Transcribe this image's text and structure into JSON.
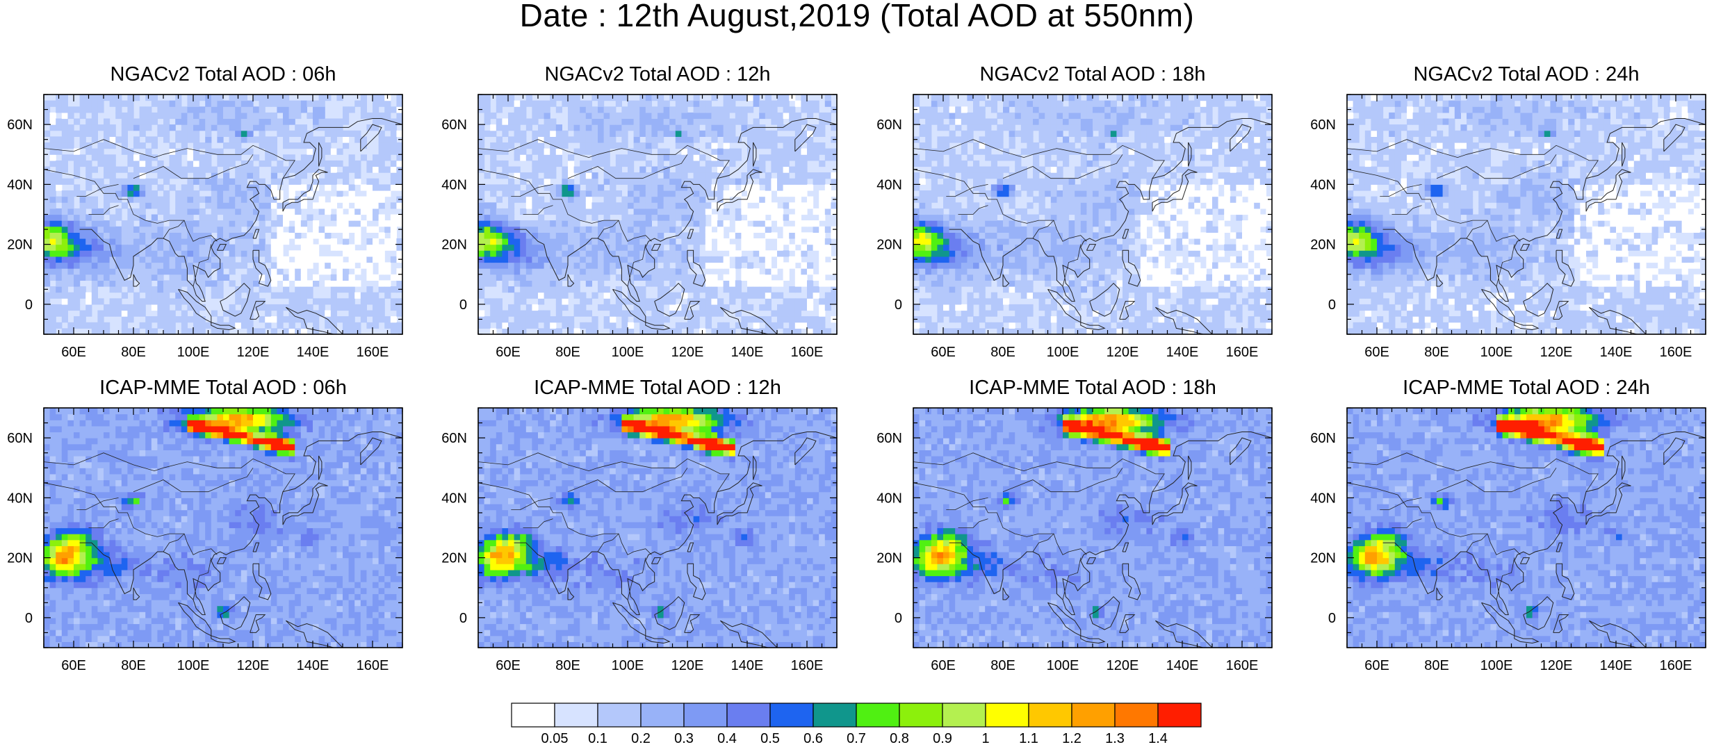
{
  "title": "Date : 12th August,2019 (Total AOD at 550nm)",
  "panels": [
    {
      "title": "NGACv2 Total AOD : 06h",
      "model": "NGACv2",
      "hour": "06h"
    },
    {
      "title": "NGACv2 Total AOD : 12h",
      "model": "NGACv2",
      "hour": "12h"
    },
    {
      "title": "NGACv2 Total AOD : 18h",
      "model": "NGACv2",
      "hour": "18h"
    },
    {
      "title": "NGACv2 Total AOD : 24h",
      "model": "NGACv2",
      "hour": "24h"
    },
    {
      "title": "ICAP-MME Total AOD : 06h",
      "model": "ICAP-MME",
      "hour": "06h"
    },
    {
      "title": "ICAP-MME Total AOD : 12h",
      "model": "ICAP-MME",
      "hour": "12h"
    },
    {
      "title": "ICAP-MME Total AOD : 18h",
      "model": "ICAP-MME",
      "hour": "18h"
    },
    {
      "title": "ICAP-MME Total AOD : 24h",
      "model": "ICAP-MME",
      "hour": "24h"
    }
  ],
  "map_extent": {
    "lon_min": 50,
    "lon_max": 170,
    "lat_min": -10,
    "lat_max": 70
  },
  "lon_ticks": [
    {
      "value": 60,
      "label": "60E"
    },
    {
      "value": 80,
      "label": "80E"
    },
    {
      "value": 100,
      "label": "100E"
    },
    {
      "value": 120,
      "label": "120E"
    },
    {
      "value": 140,
      "label": "140E"
    },
    {
      "value": 160,
      "label": "160E"
    }
  ],
  "lat_ticks": [
    {
      "value": 60,
      "label": "60N"
    },
    {
      "value": 40,
      "label": "40N"
    },
    {
      "value": 20,
      "label": "20N"
    },
    {
      "value": 0,
      "label": "0"
    }
  ],
  "colorbar": {
    "colors": [
      "#ffffff",
      "#d7e3ff",
      "#b4c8fb",
      "#98b2f8",
      "#7e9af4",
      "#6a7ef0",
      "#1e64f0",
      "#10968c",
      "#50f012",
      "#8cf00c",
      "#b4f050",
      "#ffff00",
      "#ffc800",
      "#ffa000",
      "#ff7800",
      "#ff1e00"
    ],
    "labels": [
      "0.05",
      "0.1",
      "0.2",
      "0.3",
      "0.4",
      "0.5",
      "0.6",
      "0.7",
      "0.8",
      "0.9",
      "1",
      "1.1",
      "1.2",
      "1.3",
      "1.4"
    ]
  }
}
